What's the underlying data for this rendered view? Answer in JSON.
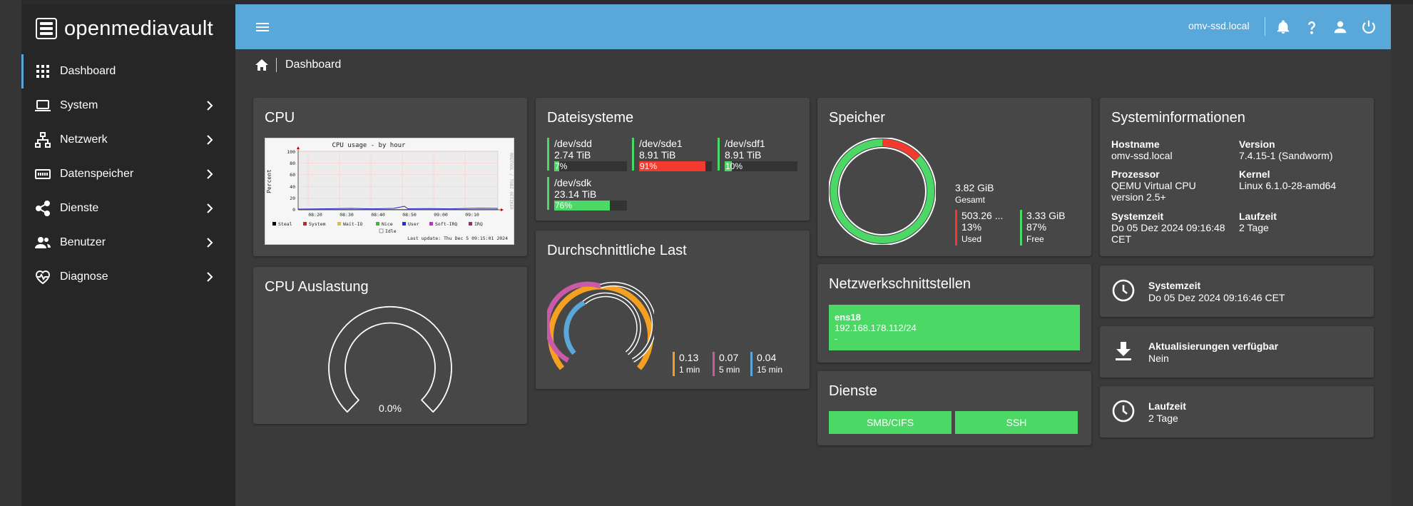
{
  "app": {
    "name": "openmediavault"
  },
  "sidebar": {
    "items": [
      {
        "label": "Dashboard"
      },
      {
        "label": "System"
      },
      {
        "label": "Netzwerk"
      },
      {
        "label": "Datenspeicher"
      },
      {
        "label": "Dienste"
      },
      {
        "label": "Benutzer"
      },
      {
        "label": "Diagnose"
      }
    ]
  },
  "topbar": {
    "hostname": "omv-ssd.local",
    "accent_color": "#5aa8da"
  },
  "breadcrumb": {
    "current": "Dashboard"
  },
  "cpu_card": {
    "title": "CPU",
    "graph": {
      "title": "CPU usage - by hour",
      "ylabel": "Percent",
      "side_label": "RRDTOOL / TOBI OETIKER",
      "yticks": [
        "100",
        "80",
        "60",
        "40",
        "20",
        "0"
      ],
      "xticks": [
        "08:20",
        "08:30",
        "08:40",
        "08:50",
        "09:00",
        "09:10"
      ],
      "legend": [
        "Steal",
        "System",
        "Wait-IO",
        "Nice",
        "User",
        "Soft-IRQ",
        "IRQ",
        "Idle"
      ],
      "last_update": "Last update: Thu Dec  5 09:15:01 2024"
    }
  },
  "cpu_usage_card": {
    "title": "CPU Auslastung",
    "value": "0.0%",
    "percent": 0
  },
  "filesystems_card": {
    "title": "Dateisysteme",
    "items": [
      {
        "device": "/dev/sdd",
        "size": "2.74 TiB",
        "percent_label": "7%",
        "percent": 7,
        "color": "#4bd865"
      },
      {
        "device": "/dev/sde1",
        "size": "8.91 TiB",
        "percent_label": "91%",
        "percent": 91,
        "color": "#f23a2f"
      },
      {
        "device": "/dev/sdf1",
        "size": "8.91 TiB",
        "percent_label": "10%",
        "percent": 10,
        "color": "#4bd865"
      },
      {
        "device": "/dev/sdk",
        "size": "23.14 TiB",
        "percent_label": "76%",
        "percent": 76,
        "color": "#4bd865"
      }
    ]
  },
  "load_card": {
    "title": "Durchschnittliche Last",
    "items": [
      {
        "value": "0.13",
        "label": "1 min",
        "color": "#f5a020"
      },
      {
        "value": "0.07",
        "label": "5 min",
        "color": "#c85aa8"
      },
      {
        "value": "0.04",
        "label": "15 min",
        "color": "#5aa8da"
      }
    ]
  },
  "memory_card": {
    "title": "Speicher",
    "total": "3.82 GiB",
    "total_label": "Gesamt",
    "used_value": "503.26 ...",
    "used_percent": "13%",
    "used_label": "Used",
    "free_value": "3.33 GiB",
    "free_percent": "87%",
    "free_label": "Free",
    "used_fraction": 0.13,
    "used_color": "#f23a2f",
    "free_color": "#4bd865"
  },
  "network_card": {
    "title": "Netzwerkschnittstellen",
    "interface": {
      "name": "ens18",
      "address": "192.168.178.112/24",
      "extra": "-"
    }
  },
  "services_card": {
    "title": "Dienste",
    "services": [
      "SMB/CIFS",
      "SSH"
    ]
  },
  "sysinfo_card": {
    "title": "Systeminformationen",
    "hostname_label": "Hostname",
    "hostname": "omv-ssd.local",
    "version_label": "Version",
    "version": "7.4.15-1 (Sandworm)",
    "processor_label": "Prozessor",
    "processor_line1": "QEMU Virtual CPU",
    "processor_line2": "version 2.5+",
    "kernel_label": "Kernel",
    "kernel": "Linux 6.1.0-28-amd64",
    "systime_label": "Systemzeit",
    "systime_line1": "Do 05 Dez 2024 09:16:48",
    "systime_line2": "CET",
    "uptime_label": "Laufzeit",
    "uptime": "2 Tage"
  },
  "systime_card": {
    "label": "Systemzeit",
    "value": "Do 05 Dez 2024 09:16:46 CET"
  },
  "updates_card": {
    "label": "Aktualisierungen verfügbar",
    "value": "Nein"
  },
  "uptime_card": {
    "label": "Laufzeit",
    "value": "2 Tage"
  }
}
